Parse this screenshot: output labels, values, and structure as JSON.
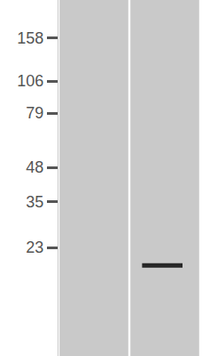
{
  "chart_data": {
    "type": "blot",
    "categories": [
      null,
      null
    ],
    "values": [
      null,
      19.5
    ],
    "ylim": [
      8.5,
      223
    ],
    "yticks": [
      158,
      106,
      79,
      48,
      35,
      23
    ],
    "log": "y",
    "grid": false,
    "tick_labels": "y",
    "color": "#262626"
  }
}
